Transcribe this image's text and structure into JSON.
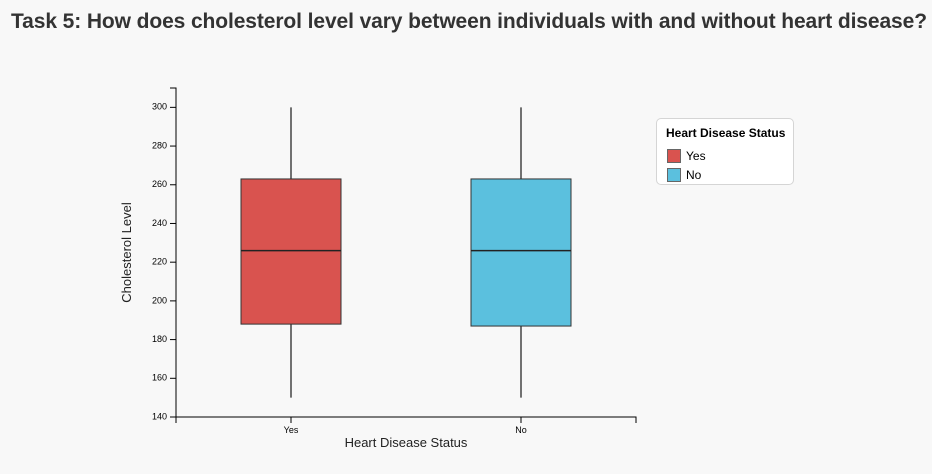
{
  "title": "Task 5: How does cholesterol level vary between individuals with and without heart disease?",
  "chart_data": {
    "type": "boxplot",
    "xlabel": "Heart Disease Status",
    "ylabel": "Cholesterol Level",
    "categories": [
      "Yes",
      "No"
    ],
    "ylim": [
      140,
      310
    ],
    "yticks": [
      140,
      160,
      180,
      200,
      220,
      240,
      260,
      280,
      300
    ],
    "boxes": [
      {
        "category": "Yes",
        "min": 150,
        "q1": 188,
        "median": 226,
        "q3": 263,
        "max": 300,
        "color": "#d9534f"
      },
      {
        "category": "No",
        "min": 150,
        "q1": 187,
        "median": 226,
        "q3": 263,
        "max": 300,
        "color": "#5bc0de"
      }
    ],
    "legend": {
      "title": "Heart Disease Status",
      "position": "right",
      "items": [
        {
          "label": "Yes",
          "color": "#d9534f"
        },
        {
          "label": "No",
          "color": "#5bc0de"
        }
      ]
    },
    "grid": false
  }
}
